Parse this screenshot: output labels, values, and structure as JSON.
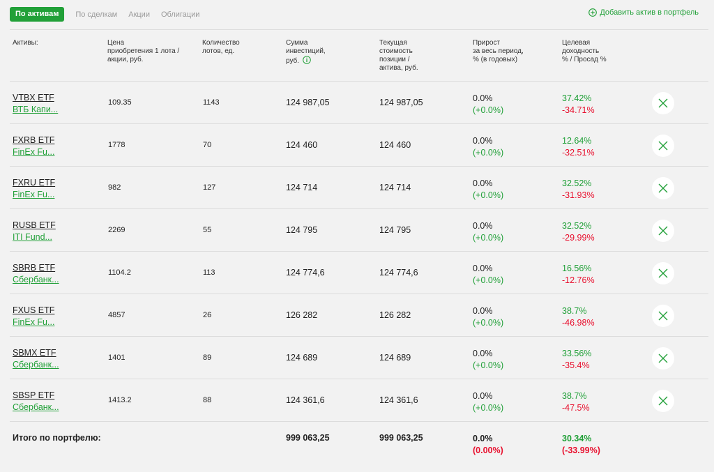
{
  "tabs": {
    "active": "По активам",
    "items": [
      "По сделкам",
      "Акции",
      "Облигации"
    ]
  },
  "add_asset_label": "Добавить актив в портфель",
  "headers": {
    "asset": "Активы:",
    "price": [
      "Цена",
      "приобретения 1 лота /",
      "акции, руб."
    ],
    "lots": [
      "Количество",
      "лотов, ед."
    ],
    "invest": [
      "Сумма",
      "инвестиций,",
      "руб."
    ],
    "current": [
      "Текущая",
      "стоимость",
      "позиции /",
      "актива, руб."
    ],
    "growth": [
      "Прирост",
      "за весь период,",
      "% (в годовых)"
    ],
    "target": [
      "Целевая",
      "доходность",
      "% / Просад %"
    ]
  },
  "rows": [
    {
      "ticker": "VTBX ETF",
      "fund": "ВТБ Капи...",
      "price": "109.35",
      "lots": "1143",
      "invest": "124 987,05",
      "current": "124 987,05",
      "growth": "0.0%",
      "growth_change": "(+0.0%)",
      "target": "37.42%",
      "drawdown": "-34.71%"
    },
    {
      "ticker": "FXRB ETF",
      "fund": "FinEx Fu...",
      "price": "1778",
      "lots": "70",
      "invest": "124 460",
      "current": "124 460",
      "growth": "0.0%",
      "growth_change": "(+0.0%)",
      "target": "12.64%",
      "drawdown": "-32.51%"
    },
    {
      "ticker": "FXRU ETF",
      "fund": "FinEx Fu...",
      "price": "982",
      "lots": "127",
      "invest": "124 714",
      "current": "124 714",
      "growth": "0.0%",
      "growth_change": "(+0.0%)",
      "target": "32.52%",
      "drawdown": "-31.93%"
    },
    {
      "ticker": "RUSB ETF",
      "fund": "ITI Fund...",
      "price": "2269",
      "lots": "55",
      "invest": "124 795",
      "current": "124 795",
      "growth": "0.0%",
      "growth_change": "(+0.0%)",
      "target": "32.52%",
      "drawdown": "-29.99%"
    },
    {
      "ticker": "SBRB ETF",
      "fund": "Сбербанк...",
      "price": "1104.2",
      "lots": "113",
      "invest": "124 774,6",
      "current": "124 774,6",
      "growth": "0.0%",
      "growth_change": "(+0.0%)",
      "target": "16.56%",
      "drawdown": "-12.76%"
    },
    {
      "ticker": "FXUS ETF",
      "fund": "FinEx Fu...",
      "price": "4857",
      "lots": "26",
      "invest": "126 282",
      "current": "126 282",
      "growth": "0.0%",
      "growth_change": "(+0.0%)",
      "target": "38.7%",
      "drawdown": "-46.98%"
    },
    {
      "ticker": "SBMX ETF",
      "fund": "Сбербанк...",
      "price": "1401",
      "lots": "89",
      "invest": "124 689",
      "current": "124 689",
      "growth": "0.0%",
      "growth_change": "(+0.0%)",
      "target": "33.56%",
      "drawdown": "-35.4%"
    },
    {
      "ticker": "SBSP ETF",
      "fund": "Сбербанк...",
      "price": "1413.2",
      "lots": "88",
      "invest": "124 361,6",
      "current": "124 361,6",
      "growth": "0.0%",
      "growth_change": "(+0.0%)",
      "target": "38.7%",
      "drawdown": "-47.5%"
    }
  ],
  "total": {
    "label": "Итого по портфелю:",
    "invest": "999 063,25",
    "current": "999 063,25",
    "growth": "0.0%",
    "growth_change": "(0.00%)",
    "target": "30.34%",
    "drawdown": "(-33.99%)"
  },
  "colors": {
    "accent": "#21a038",
    "negative": "#e8102e",
    "background": "#f2f2f2"
  }
}
